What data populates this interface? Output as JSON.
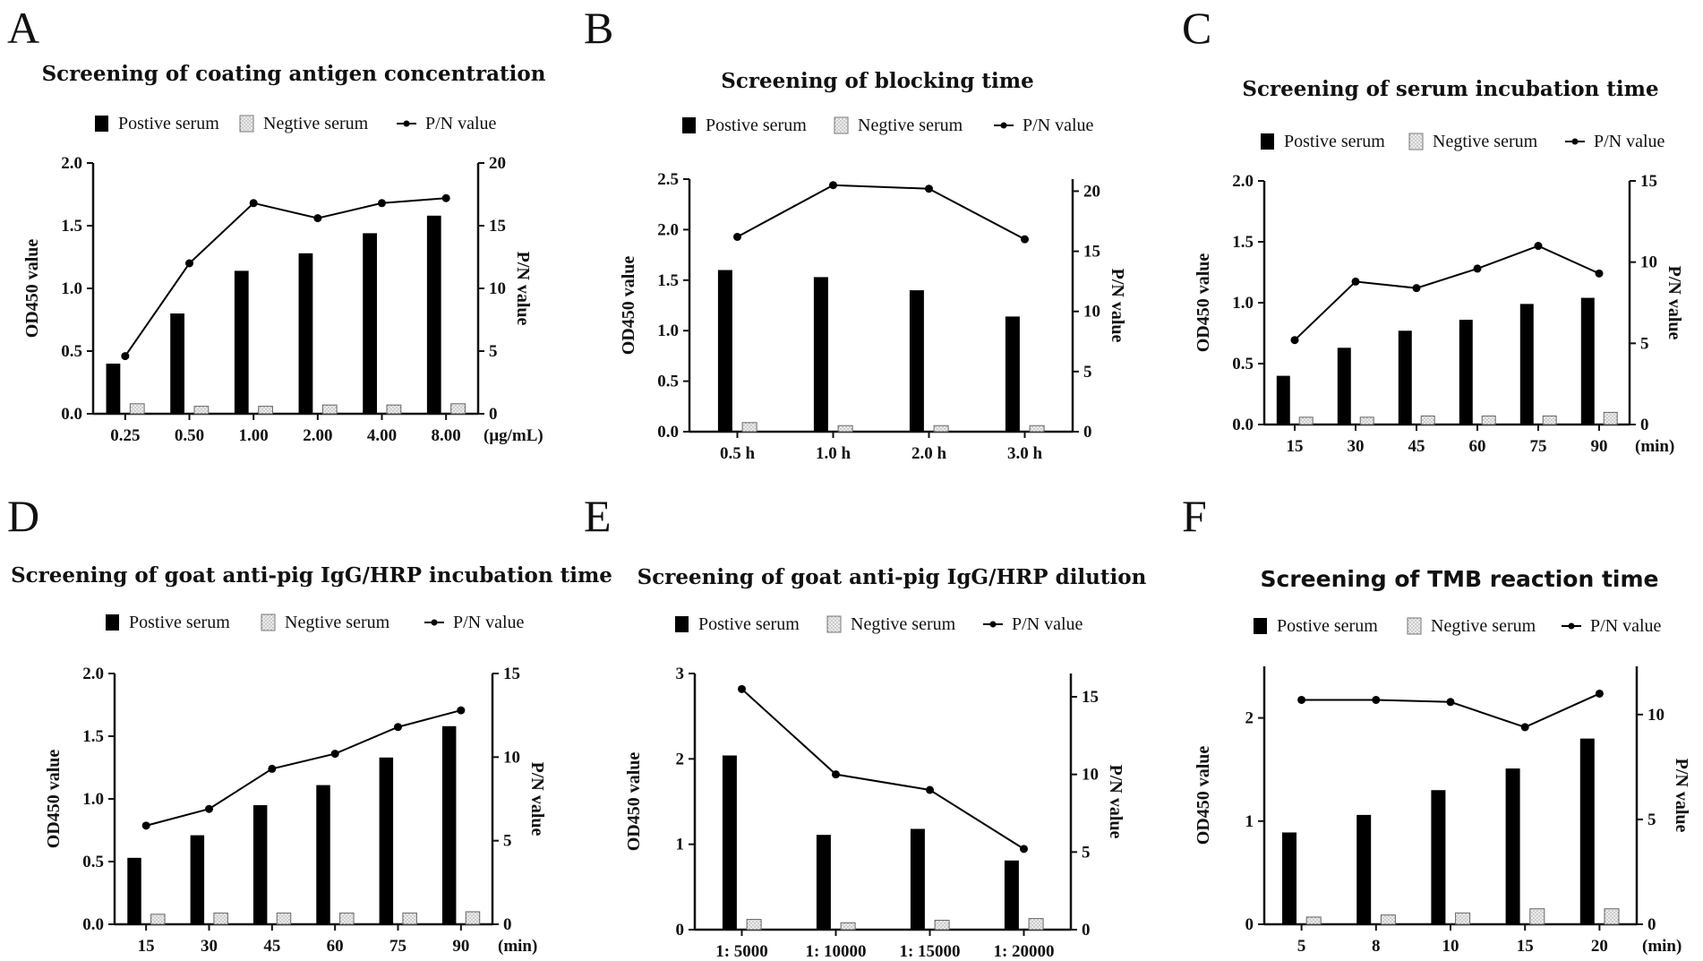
{
  "chart_data": [
    {
      "panel": "A",
      "type": "bar+line",
      "title": "Screening of coating antigen concentration",
      "categories": [
        "0.25",
        "0.50",
        "1.00",
        "2.00",
        "4.00",
        "8.00"
      ],
      "x_unit": "(μg/mL)",
      "series": [
        {
          "name": "Postive serum",
          "type": "bar",
          "axis": "left",
          "values": [
            0.4,
            0.8,
            1.14,
            1.28,
            1.44,
            1.58
          ]
        },
        {
          "name": "Negtive serum",
          "type": "bar",
          "axis": "left",
          "values": [
            0.08,
            0.06,
            0.06,
            0.07,
            0.07,
            0.08
          ]
        },
        {
          "name": "P/N value",
          "type": "line",
          "axis": "right",
          "values": [
            4.6,
            12.0,
            16.8,
            15.6,
            16.8,
            17.2
          ]
        }
      ],
      "ylabel": "OD450 value",
      "y2label": "P/N value",
      "ylim": [
        0,
        2.0
      ],
      "yticks": [
        "0.0",
        "0.5",
        "1.0",
        "1.5",
        "2.0"
      ],
      "y2lim": [
        0,
        20
      ],
      "y2ticks": [
        "0",
        "5",
        "10",
        "15",
        "20"
      ]
    },
    {
      "panel": "B",
      "type": "bar+line",
      "title": "Screening of blocking time",
      "categories": [
        "0.5 h",
        "1.0 h",
        "2.0 h",
        "3.0 h"
      ],
      "x_unit": "",
      "series": [
        {
          "name": "Postive serum",
          "type": "bar",
          "axis": "left",
          "values": [
            1.6,
            1.53,
            1.4,
            1.14
          ]
        },
        {
          "name": "Negtive serum",
          "type": "bar",
          "axis": "left",
          "values": [
            0.09,
            0.06,
            0.06,
            0.06
          ]
        },
        {
          "name": "P/N value",
          "type": "line",
          "axis": "right",
          "values": [
            16.2,
            20.5,
            20.2,
            16.0
          ]
        }
      ],
      "ylabel": "OD450 value",
      "y2label": "P/N value",
      "ylim": [
        0,
        2.5
      ],
      "yticks": [
        "0.0",
        "0.5",
        "1.0",
        "1.5",
        "2.0",
        "2.5"
      ],
      "y2lim": [
        0,
        21
      ],
      "y2ticks": [
        "0",
        "5",
        "10",
        "15",
        "20"
      ]
    },
    {
      "panel": "C",
      "type": "bar+line",
      "title": "Screening of serum incubation time",
      "categories": [
        "15",
        "30",
        "45",
        "60",
        "75",
        "90"
      ],
      "x_unit": "(min)",
      "series": [
        {
          "name": "Postive serum",
          "type": "bar",
          "axis": "left",
          "values": [
            0.4,
            0.63,
            0.77,
            0.86,
            0.99,
            1.04
          ]
        },
        {
          "name": "Negtive serum",
          "type": "bar",
          "axis": "left",
          "values": [
            0.06,
            0.06,
            0.07,
            0.07,
            0.07,
            0.1
          ]
        },
        {
          "name": "P/N value",
          "type": "line",
          "axis": "right",
          "values": [
            5.2,
            8.8,
            8.4,
            9.6,
            11.0,
            9.3
          ]
        }
      ],
      "ylabel": "OD450 value",
      "y2label": "P/N value",
      "ylim": [
        0,
        2.0
      ],
      "yticks": [
        "0.0",
        "0.5",
        "1.0",
        "1.5",
        "2.0"
      ],
      "y2lim": [
        0,
        15
      ],
      "y2ticks": [
        "0",
        "5",
        "10",
        "15"
      ]
    },
    {
      "panel": "D",
      "type": "bar+line",
      "title": "Screening of goat anti-pig IgG/HRP incubation time",
      "categories": [
        "15",
        "30",
        "45",
        "60",
        "75",
        "90"
      ],
      "x_unit": "(min)",
      "series": [
        {
          "name": "Postive serum",
          "type": "bar",
          "axis": "left",
          "values": [
            0.53,
            0.71,
            0.95,
            1.11,
            1.33,
            1.58
          ]
        },
        {
          "name": "Negtive serum",
          "type": "bar",
          "axis": "left",
          "values": [
            0.08,
            0.09,
            0.09,
            0.09,
            0.09,
            0.1
          ]
        },
        {
          "name": "P/N value",
          "type": "line",
          "axis": "right",
          "values": [
            5.9,
            6.9,
            9.3,
            10.2,
            11.8,
            12.8
          ]
        }
      ],
      "ylabel": "OD450 value",
      "y2label": "P/N value",
      "ylim": [
        0,
        2.0
      ],
      "yticks": [
        "0.0",
        "0.5",
        "1.0",
        "1.5",
        "2.0"
      ],
      "y2lim": [
        0,
        15
      ],
      "y2ticks": [
        "0",
        "5",
        "10",
        "15"
      ]
    },
    {
      "panel": "E",
      "type": "bar+line",
      "title": "Screening of goat anti-pig IgG/HRP dilution",
      "categories": [
        "1: 5000",
        "1: 10000",
        "1: 15000",
        "1: 20000"
      ],
      "x_unit": "",
      "series": [
        {
          "name": "Postive serum",
          "type": "bar",
          "axis": "left",
          "values": [
            2.04,
            1.11,
            1.18,
            0.81
          ]
        },
        {
          "name": "Negtive serum",
          "type": "bar",
          "axis": "left",
          "values": [
            0.12,
            0.08,
            0.11,
            0.13
          ]
        },
        {
          "name": "P/N value",
          "type": "line",
          "axis": "right",
          "values": [
            15.5,
            10.0,
            9.0,
            5.2
          ]
        }
      ],
      "ylabel": "OD450 value",
      "y2label": "P/N value",
      "ylim": [
        0,
        3
      ],
      "yticks": [
        "0",
        "1",
        "2",
        "3"
      ],
      "y2lim": [
        0,
        16.5
      ],
      "y2ticks": [
        "0",
        "5",
        "10",
        "15"
      ]
    },
    {
      "panel": "F",
      "type": "bar+line",
      "title": "Screening of TMB reaction time",
      "categories": [
        "5",
        "8",
        "10",
        "15",
        "20"
      ],
      "x_unit": "(min)",
      "series": [
        {
          "name": "Postive serum",
          "type": "bar",
          "axis": "left",
          "values": [
            0.89,
            1.06,
            1.3,
            1.51,
            1.8
          ]
        },
        {
          "name": "Negtive serum",
          "type": "bar",
          "axis": "left",
          "values": [
            0.07,
            0.09,
            0.11,
            0.15,
            0.15
          ]
        },
        {
          "name": "P/N value",
          "type": "line",
          "axis": "right",
          "values": [
            10.7,
            10.7,
            10.6,
            9.4,
            11.0
          ]
        }
      ],
      "ylabel": "OD450 value",
      "y2label": "P/N value",
      "ylim": [
        0,
        2.5
      ],
      "yticks": [
        "0",
        "1",
        "2"
      ],
      "y2lim": [
        0,
        12.3
      ],
      "y2ticks": [
        "0",
        "5",
        "10"
      ]
    }
  ]
}
